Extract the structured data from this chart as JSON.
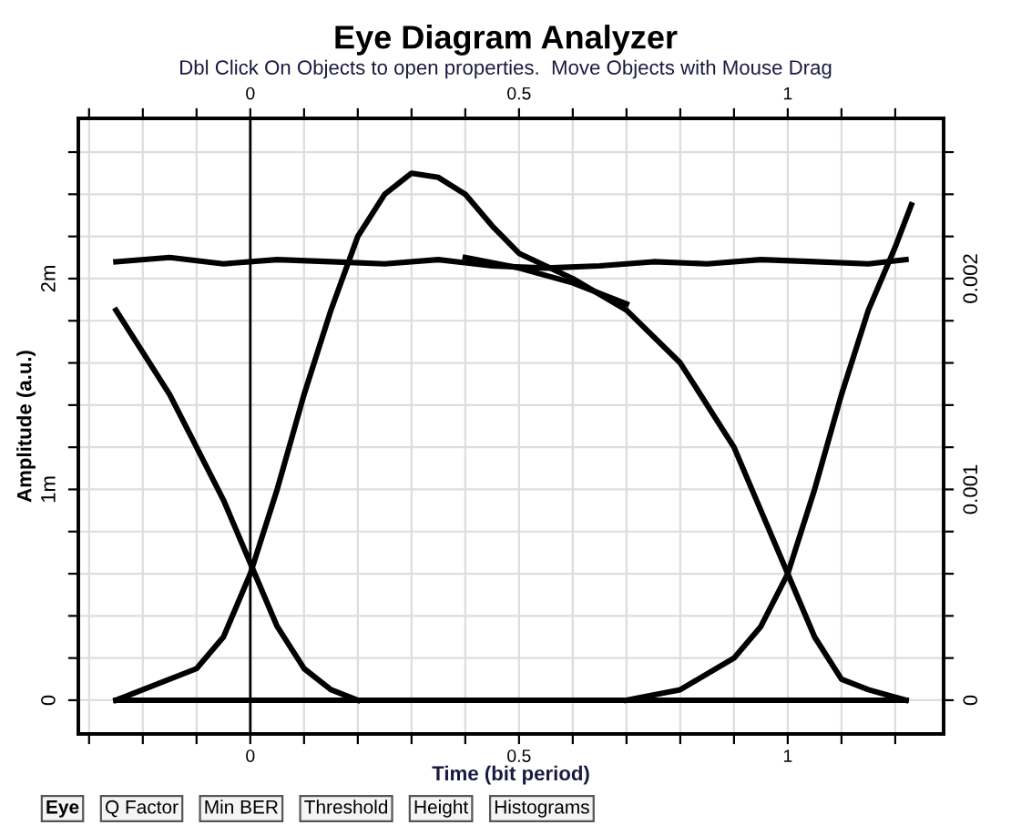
{
  "chart_data": {
    "type": "line",
    "title": "Eye Diagram Analyzer",
    "subtitle": "Dbl Click On Objects to open properties.  Move Objects with Mouse Drag",
    "xlabel": "Time (bit period)",
    "ylabel": "Amplitude (a.u.)",
    "annotations": [
      "Eye",
      "Q Factor",
      "Min BER",
      "Threshold",
      "Height",
      "Histograms"
    ],
    "xlim": [
      -0.32,
      1.29
    ],
    "ylim": [
      -0.16,
      2.76
    ],
    "y2lim": [
      -0.00016,
      0.00276
    ],
    "x2lim": [
      -0.32,
      1.29
    ],
    "xticks": [
      {
        "value": -0.3,
        "label": null
      },
      {
        "value": -0.2,
        "label": null
      },
      {
        "value": -0.1,
        "label": null
      },
      0,
      {
        "value": 0.1,
        "label": null
      },
      {
        "value": 0.2,
        "label": null
      },
      {
        "value": 0.3,
        "label": null
      },
      {
        "value": 0.4,
        "label": null
      },
      0.5,
      {
        "value": 0.6,
        "label": null
      },
      {
        "value": 0.7,
        "label": null
      },
      {
        "value": 0.8,
        "label": null
      },
      {
        "value": 0.9,
        "label": null
      },
      1,
      {
        "value": 1.1,
        "label": null
      },
      {
        "value": 1.2,
        "label": null
      }
    ],
    "x2ticks": [
      {
        "value": -0.3,
        "label": null
      },
      {
        "value": -0.2,
        "label": null
      },
      {
        "value": -0.1,
        "label": null
      },
      0,
      {
        "value": 0.1,
        "label": null
      },
      {
        "value": 0.2,
        "label": null
      },
      {
        "value": 0.3,
        "label": null
      },
      {
        "value": 0.4,
        "label": null
      },
      0.5,
      {
        "value": 0.6,
        "label": null
      },
      {
        "value": 0.7,
        "label": null
      },
      {
        "value": 0.8,
        "label": null
      },
      {
        "value": 0.9,
        "label": null
      },
      1,
      {
        "value": 1.1,
        "label": null
      },
      {
        "value": 1.2,
        "label": null
      }
    ],
    "yticks": [
      0,
      {
        "value": 0.2,
        "label": null
      },
      {
        "value": 0.4,
        "label": null
      },
      {
        "value": 0.6,
        "label": null
      },
      {
        "value": 0.8,
        "label": null
      },
      {
        "value": 1,
        "label": "1m"
      },
      {
        "value": 1.2,
        "label": null
      },
      {
        "value": 1.4,
        "label": null
      },
      {
        "value": 1.6,
        "label": null
      },
      {
        "value": 1.8,
        "label": null
      },
      {
        "value": 2,
        "label": "2m"
      },
      {
        "value": 2.2,
        "label": null
      },
      {
        "value": 2.4,
        "label": null
      },
      {
        "value": 2.6,
        "label": null
      }
    ],
    "y2ticks": [
      0,
      {
        "value": 0.0002,
        "label": null
      },
      {
        "value": 0.0004,
        "label": null
      },
      {
        "value": 0.0006,
        "label": null
      },
      {
        "value": 0.0008,
        "label": null
      },
      0.001,
      {
        "value": 0.0012,
        "label": null
      },
      {
        "value": 0.0014,
        "label": null
      },
      {
        "value": 0.0016,
        "label": null
      },
      {
        "value": 0.0018,
        "label": null
      },
      0.002,
      {
        "value": 0.0022,
        "label": null
      },
      {
        "value": 0.0024,
        "label": null
      },
      {
        "value": 0.0026,
        "label": null
      }
    ],
    "grid": true,
    "legend": false,
    "ref_lines": [
      {
        "axis": "x",
        "value": 0,
        "color": "#000000"
      }
    ],
    "series": [
      {
        "color": "#000000",
        "x": [
          -0.25,
          -0.15,
          -0.05,
          0.05,
          0.15,
          0.25,
          0.35,
          0.45,
          0.55,
          0.65,
          0.75,
          0.85,
          0.95,
          1.05,
          1.15,
          1.22
        ],
        "values": [
          2.08,
          2.1,
          2.07,
          2.09,
          2.08,
          2.07,
          2.09,
          2.06,
          2.05,
          2.06,
          2.08,
          2.07,
          2.09,
          2.08,
          2.07,
          2.09
        ]
      },
      {
        "color": "#000000",
        "x": [
          -0.25,
          -0.1,
          0.05,
          0.2,
          0.35,
          0.5,
          0.65,
          0.8,
          0.95,
          1.1,
          1.22
        ],
        "values": [
          0,
          0,
          0,
          0,
          0,
          0,
          0,
          0,
          0,
          0,
          0
        ]
      },
      {
        "color": "#000000",
        "x": [
          -0.25,
          -0.2,
          -0.15,
          -0.1,
          -0.05,
          0,
          0.05,
          0.1,
          0.15,
          0.2
        ],
        "values": [
          1.85,
          1.65,
          1.45,
          1.2,
          0.95,
          0.65,
          0.35,
          0.15,
          0.05,
          0
        ]
      },
      {
        "color": "#000000",
        "x": [
          -0.25,
          -0.2,
          -0.1,
          -0.05,
          0,
          0.05,
          0.1,
          0.15,
          0.2,
          0.25,
          0.3,
          0.35,
          0.4,
          0.45,
          0.5,
          0.6,
          0.7,
          0.8,
          0.9,
          0.95,
          1.0,
          1.05,
          1.1,
          1.15,
          1.22
        ],
        "values": [
          0,
          0.05,
          0.15,
          0.3,
          0.6,
          1,
          1.45,
          1.85,
          2.2,
          2.4,
          2.5,
          2.48,
          2.4,
          2.25,
          2.12,
          2,
          1.85,
          1.6,
          1.2,
          0.9,
          0.6,
          0.3,
          0.1,
          0.05,
          0
        ]
      },
      {
        "color": "#000000",
        "x": [
          0.4,
          0.5,
          0.6,
          0.7
        ],
        "values": [
          2.1,
          2.05,
          1.98,
          1.88
        ]
      },
      {
        "color": "#000000",
        "x": [
          0.7,
          0.8,
          0.9,
          0.95,
          1.0,
          1.05,
          1.1,
          1.15,
          1.2,
          1.23
        ],
        "values": [
          0,
          0.05,
          0.2,
          0.35,
          0.6,
          1,
          1.45,
          1.85,
          2.15,
          2.35
        ]
      }
    ]
  }
}
